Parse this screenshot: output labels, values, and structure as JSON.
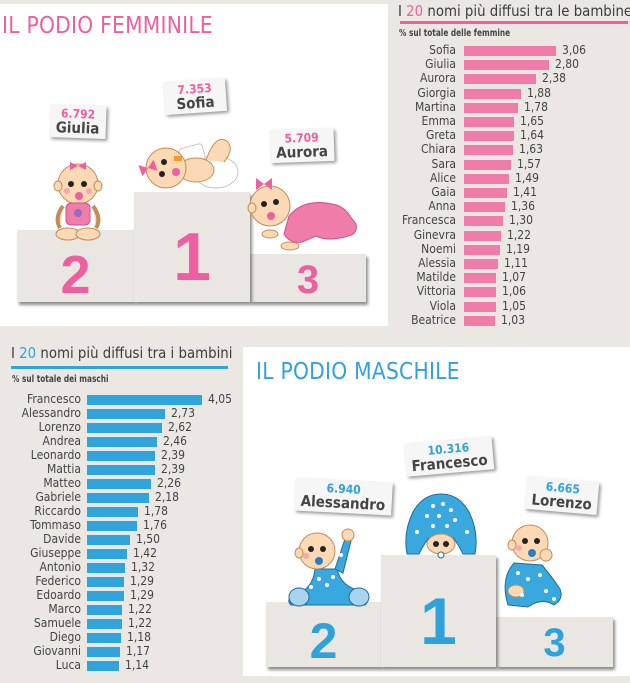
{
  "female": {
    "podium_title": "IL PODIO FEMMINILE",
    "podium": [
      {
        "place": "1",
        "name": "Sofia",
        "count": "7.353"
      },
      {
        "place": "2",
        "name": "Giulia",
        "count": "6.792"
      },
      {
        "place": "3",
        "name": "Aurora",
        "count": "5.709"
      }
    ],
    "chart_title_prefix": "I ",
    "chart_title_highlight": "20",
    "chart_title_suffix": " nomi più diffusi tra le bambine",
    "chart_subtitle": "% sul totale delle femmine",
    "rows": [
      {
        "name": "Sofia",
        "value": "3,06"
      },
      {
        "name": "Giulia",
        "value": "2,80"
      },
      {
        "name": "Aurora",
        "value": "2,38"
      },
      {
        "name": "Giorgia",
        "value": "1,88"
      },
      {
        "name": "Martina",
        "value": "1,78"
      },
      {
        "name": "Emma",
        "value": "1,65"
      },
      {
        "name": "Greta",
        "value": "1,64"
      },
      {
        "name": "Chiara",
        "value": "1,63"
      },
      {
        "name": "Sara",
        "value": "1,57"
      },
      {
        "name": "Alice",
        "value": "1,49"
      },
      {
        "name": "Gaia",
        "value": "1,41"
      },
      {
        "name": "Anna",
        "value": "1,36"
      },
      {
        "name": "Francesca",
        "value": "1,30"
      },
      {
        "name": "Ginevra",
        "value": "1,22"
      },
      {
        "name": "Noemi",
        "value": "1,19"
      },
      {
        "name": "Alessia",
        "value": "1,11"
      },
      {
        "name": "Matilde",
        "value": "1,07"
      },
      {
        "name": "Vittoria",
        "value": "1,06"
      },
      {
        "name": "Viola",
        "value": "1,05"
      },
      {
        "name": "Beatrice",
        "value": "1,03"
      }
    ]
  },
  "male": {
    "podium_title": "IL PODIO MASCHILE",
    "podium": [
      {
        "place": "1",
        "name": "Francesco",
        "count": "10.316"
      },
      {
        "place": "2",
        "name": "Alessandro",
        "count": "6.940"
      },
      {
        "place": "3",
        "name": "Lorenzo",
        "count": "6.665"
      }
    ],
    "chart_title_prefix": "I ",
    "chart_title_highlight": "20",
    "chart_title_suffix": " nomi più diffusi tra i bambini",
    "chart_subtitle": "% sul totale dei maschi",
    "rows": [
      {
        "name": "Francesco",
        "value": "4,05"
      },
      {
        "name": "Alessandro",
        "value": "2,73"
      },
      {
        "name": "Lorenzo",
        "value": "2,62"
      },
      {
        "name": "Andrea",
        "value": "2,46"
      },
      {
        "name": "Leonardo",
        "value": "2,39"
      },
      {
        "name": "Mattia",
        "value": "2,39"
      },
      {
        "name": "Matteo",
        "value": "2,26"
      },
      {
        "name": "Gabriele",
        "value": "2,18"
      },
      {
        "name": "Riccardo",
        "value": "1,78"
      },
      {
        "name": "Tommaso",
        "value": "1,76"
      },
      {
        "name": "Davide",
        "value": "1,50"
      },
      {
        "name": "Giuseppe",
        "value": "1,42"
      },
      {
        "name": "Antonio",
        "value": "1,32"
      },
      {
        "name": "Federico",
        "value": "1,29"
      },
      {
        "name": "Edoardo",
        "value": "1,29"
      },
      {
        "name": "Marco",
        "value": "1,22"
      },
      {
        "name": "Samuele",
        "value": "1,22"
      },
      {
        "name": "Diego",
        "value": "1,18"
      },
      {
        "name": "Giovanni",
        "value": "1,17"
      },
      {
        "name": "Luca",
        "value": "1,14"
      }
    ]
  },
  "colors": {
    "pink": "#ee5fa0",
    "pink_bar": "#f07caa",
    "blue": "#2fa2dc",
    "blue_bar": "#30a4dc",
    "background": "#ebe8e4",
    "podium_block": "#eae7e2"
  },
  "chart_data": [
    {
      "type": "bar",
      "orientation": "horizontal",
      "title": "I 20 nomi più diffusi tra le bambine",
      "subtitle": "% sul totale delle femmine",
      "xlabel": "",
      "ylabel": "",
      "categories": [
        "Sofia",
        "Giulia",
        "Aurora",
        "Giorgia",
        "Martina",
        "Emma",
        "Greta",
        "Chiara",
        "Sara",
        "Alice",
        "Gaia",
        "Anna",
        "Francesca",
        "Ginevra",
        "Noemi",
        "Alessia",
        "Matilde",
        "Vittoria",
        "Viola",
        "Beatrice"
      ],
      "values": [
        3.06,
        2.8,
        2.38,
        1.88,
        1.78,
        1.65,
        1.64,
        1.63,
        1.57,
        1.49,
        1.41,
        1.36,
        1.3,
        1.22,
        1.19,
        1.11,
        1.07,
        1.06,
        1.05,
        1.03
      ],
      "color": "#f07caa",
      "grid": false,
      "legend": "none",
      "data_labels": true
    },
    {
      "type": "bar",
      "orientation": "horizontal",
      "title": "I 20 nomi più diffusi tra i bambini",
      "subtitle": "% sul totale dei maschi",
      "xlabel": "",
      "ylabel": "",
      "categories": [
        "Francesco",
        "Alessandro",
        "Lorenzo",
        "Andrea",
        "Leonardo",
        "Mattia",
        "Matteo",
        "Gabriele",
        "Riccardo",
        "Tommaso",
        "Davide",
        "Giuseppe",
        "Antonio",
        "Federico",
        "Edoardo",
        "Marco",
        "Samuele",
        "Diego",
        "Giovanni",
        "Luca"
      ],
      "values": [
        4.05,
        2.73,
        2.62,
        2.46,
        2.39,
        2.39,
        2.26,
        2.18,
        1.78,
        1.76,
        1.5,
        1.42,
        1.32,
        1.29,
        1.29,
        1.22,
        1.22,
        1.18,
        1.17,
        1.14
      ],
      "color": "#30a4dc",
      "grid": false,
      "legend": "none",
      "data_labels": true
    },
    {
      "type": "bar",
      "title": "IL PODIO FEMMINILE",
      "categories": [
        "Sofia",
        "Giulia",
        "Aurora"
      ],
      "values": [
        7353,
        6792,
        5709
      ],
      "places": [
        1,
        2,
        3
      ]
    },
    {
      "type": "bar",
      "title": "IL PODIO MASCHILE",
      "categories": [
        "Francesco",
        "Alessandro",
        "Lorenzo"
      ],
      "values": [
        10316,
        6940,
        6665
      ],
      "places": [
        1,
        2,
        3
      ]
    }
  ]
}
